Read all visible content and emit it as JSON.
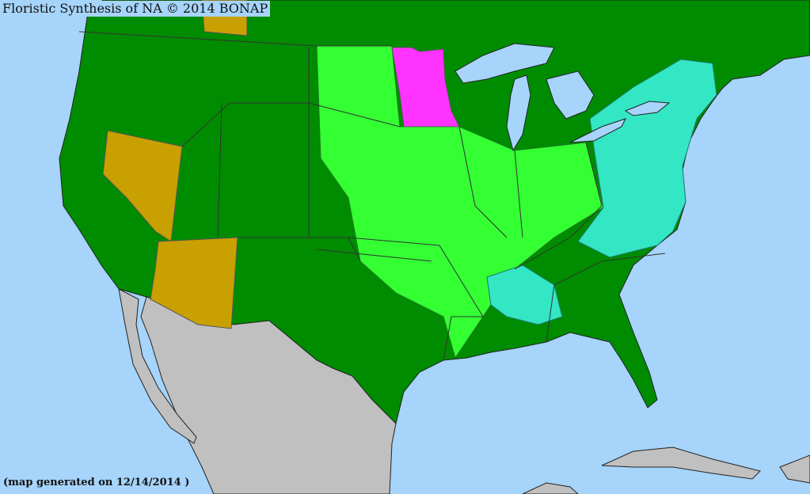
{
  "header": {
    "title": "Floristic Synthesis of NA © 2014  BONAP"
  },
  "footer": {
    "generated": "(map generated on 12/14/2014 )"
  },
  "colors": {
    "ocean": "#a6d4fa",
    "present_not_rare": "#008c00",
    "present_county": "#33ff33",
    "rare": "#ff33ff",
    "native_adventive": "#33e6c4",
    "absent_state": "#c8a000",
    "outside_range": "#c0c0c0"
  }
}
